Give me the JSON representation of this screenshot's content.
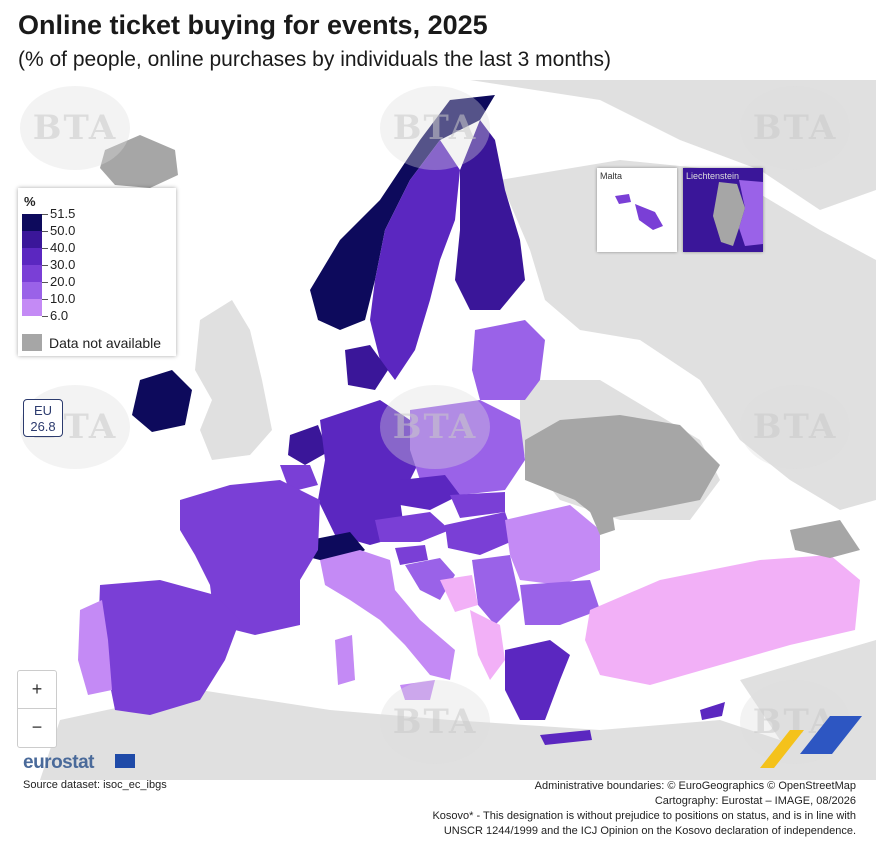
{
  "header": {
    "title": "Online ticket buying for events, 2025",
    "subtitle": "(% of people, online purchases by individuals the last 3 months)"
  },
  "legend": {
    "title": "%",
    "thresholds": [
      "51.5",
      "50.0",
      "40.0",
      "30.0",
      "20.0",
      "10.0",
      "6.0"
    ],
    "colors": [
      "#0d0a5c",
      "#3a1699",
      "#5b27c0",
      "#7a3fd6",
      "#9a62e8",
      "#c48af5",
      "#f2b0f7"
    ],
    "not_available_label": "Data not available",
    "not_available_color": "#a6a6a6"
  },
  "eu_badge": {
    "label": "EU",
    "value": "26.8"
  },
  "insets": [
    {
      "label": "Malta"
    },
    {
      "label": "Liechtenstein"
    }
  ],
  "zoom": {
    "in_label": "+",
    "out_label": "−"
  },
  "branding": {
    "logo_text": "eurostat"
  },
  "watermark": {
    "text": "BTA"
  },
  "footer": {
    "source": "Source dataset: isoc_ec_ibgs",
    "boundaries": "Administrative boundaries: © EuroGeographics © OpenStreetMap",
    "cartography": "Cartography: Eurostat – IMAGE, 08/2026",
    "kosovo_line1": "Kosovo* - This designation is without prejudice to positions on status, and is in line with",
    "kosovo_line2": "UNSCR 1244/1999 and the ICJ Opinion on the Kosovo declaration of independence."
  }
}
